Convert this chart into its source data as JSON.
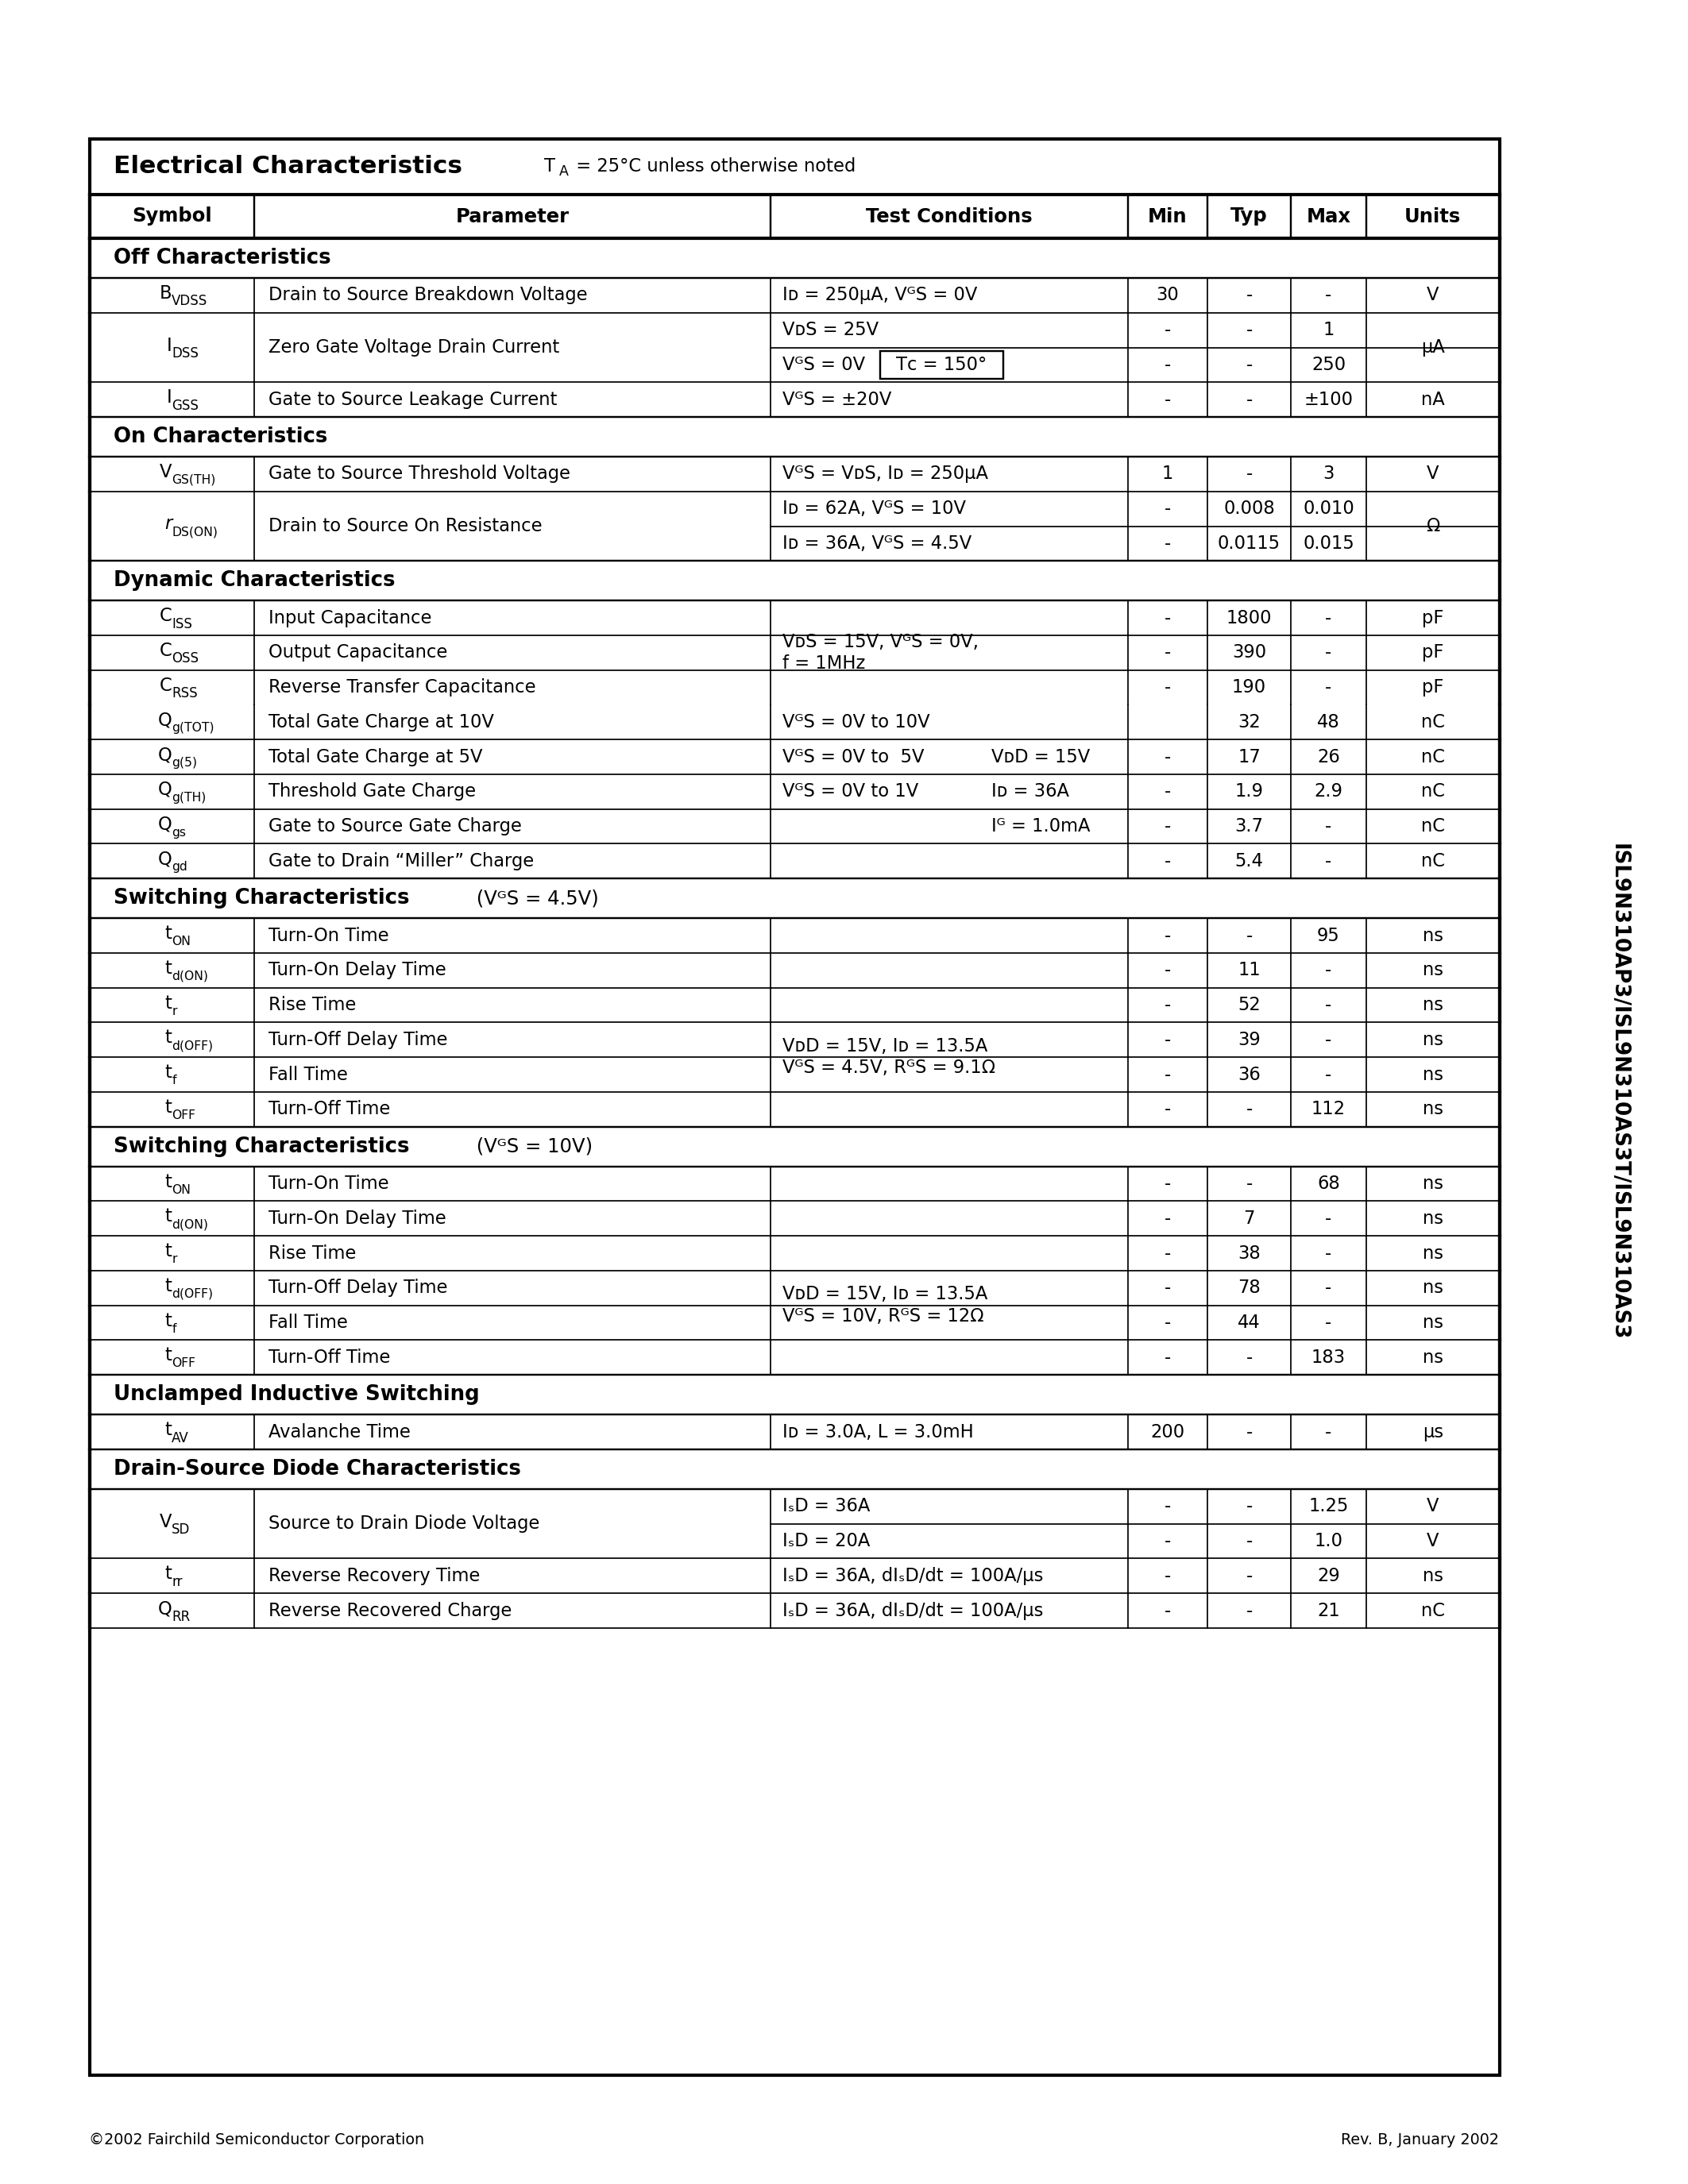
{
  "page_bg": "#ffffff",
  "footer_left": "©2002 Fairchild Semiconductor Corporation",
  "footer_right": "Rev. B, January 2002",
  "side_text": "ISL9N310AP3/ISL9N310AS3T/ISL9N310AS3"
}
